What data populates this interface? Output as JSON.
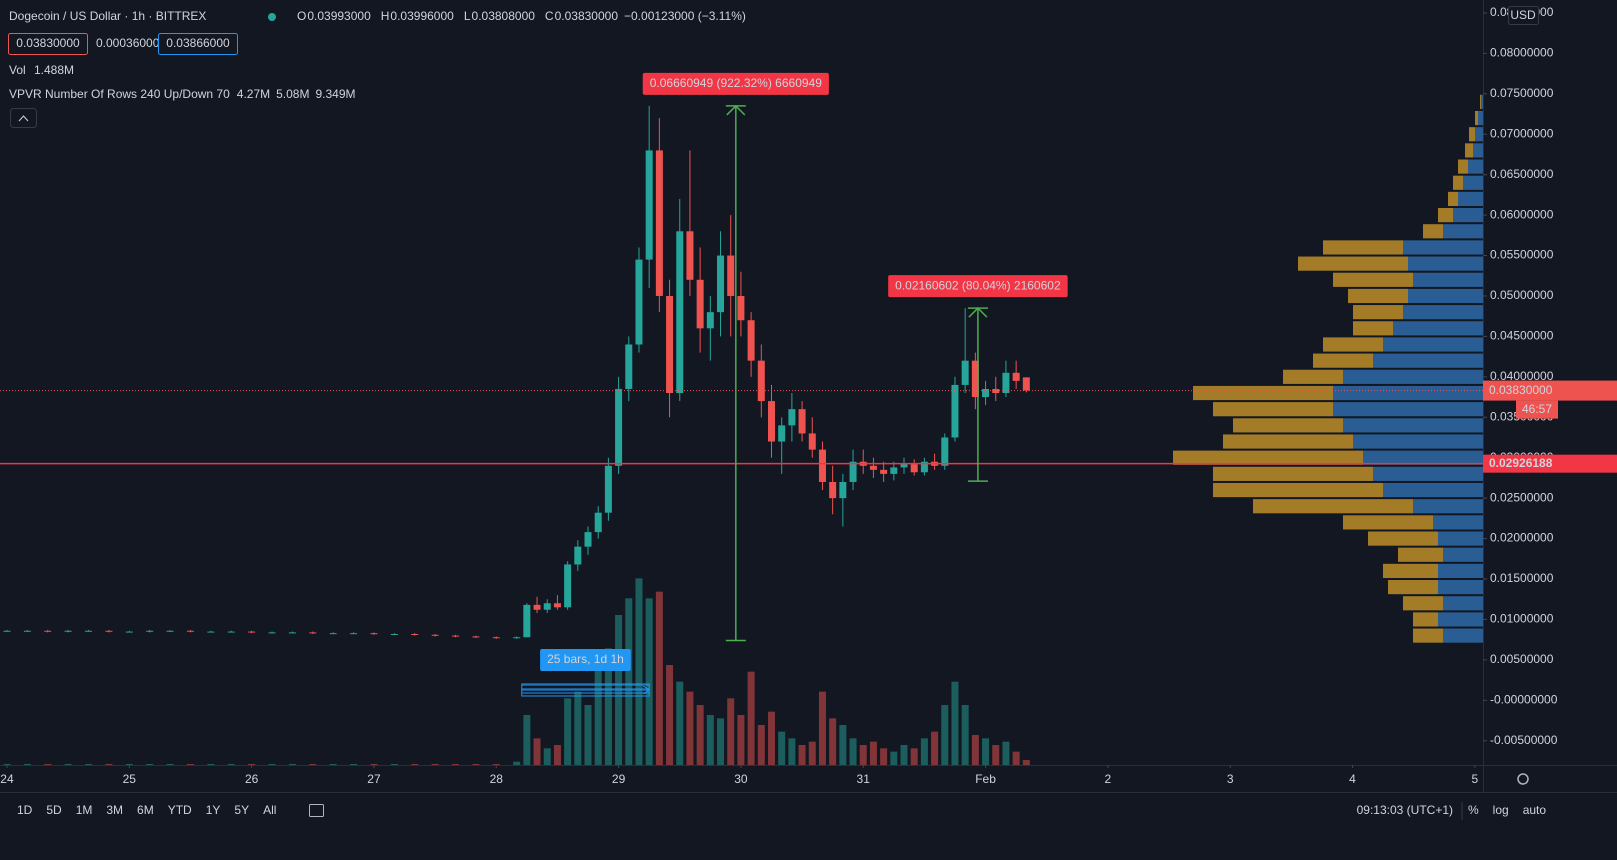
{
  "chart_data": {
    "type": "candlestick",
    "header": {
      "title": "Dogecoin / US Dollar · 1h · BITTREX",
      "ohlc": [
        {
          "k": "O",
          "v": "0.03993000"
        },
        {
          "k": "H",
          "v": "0.03996000"
        },
        {
          "k": "L",
          "v": "0.03808000"
        },
        {
          "k": "C",
          "v": "0.03830000"
        }
      ],
      "change": "−0.00123000 (−3.11%)",
      "bid": "0.03830000",
      "spread": "0.00036000",
      "ask": "0.03866000",
      "vol_label": "Vol",
      "vol_value": "1.488M",
      "vpvr_label": "VPVR Number Of Rows 240 Up/Down 70",
      "vpvr_up": "4.27M",
      "vpvr_down": "5.08M",
      "vpvr_total": "9.349M"
    },
    "currency": "USD",
    "x": [
      0,
      4,
      8,
      12,
      16,
      20,
      24,
      28,
      32,
      36,
      40,
      44,
      48,
      52,
      56,
      60,
      64,
      68,
      72,
      76,
      80,
      84,
      88,
      92,
      96,
      100,
      102,
      104,
      106,
      108,
      110,
      112,
      114,
      116,
      118,
      120,
      122,
      124,
      126,
      128,
      130,
      132,
      134,
      136,
      138,
      140,
      142,
      144,
      146,
      148,
      150,
      152,
      154,
      156,
      158,
      160,
      162,
      164,
      166,
      168,
      170,
      172,
      174,
      176,
      178,
      180,
      182,
      184,
      186,
      188,
      190,
      192,
      194,
      196,
      198,
      200
    ],
    "open": [
      0.0086,
      0.0086,
      0.0086,
      0.0085,
      0.0086,
      0.0086,
      0.0085,
      0.0085,
      0.0086,
      0.0086,
      0.0085,
      0.0085,
      0.0085,
      0.0084,
      0.0084,
      0.0084,
      0.0083,
      0.0083,
      0.0083,
      0.0082,
      0.0082,
      0.0081,
      0.008,
      0.0079,
      0.0078,
      0.0077,
      0.0078,
      0.0118,
      0.0112,
      0.012,
      0.0115,
      0.0168,
      0.019,
      0.0208,
      0.0232,
      0.029,
      0.0385,
      0.044,
      0.0545,
      0.068,
      0.05,
      0.038,
      0.058,
      0.052,
      0.046,
      0.048,
      0.055,
      0.05,
      0.047,
      0.042,
      0.037,
      0.032,
      0.034,
      0.036,
      0.033,
      0.031,
      0.027,
      0.025,
      0.027,
      0.0295,
      0.029,
      0.0285,
      0.028,
      0.0288,
      0.0292,
      0.0282,
      0.0295,
      0.029,
      0.0325,
      0.039,
      0.042,
      0.0375,
      0.0385,
      0.038,
      0.0405,
      0.03993
    ],
    "high": [
      0.0087,
      0.0087,
      0.0087,
      0.0087,
      0.0087,
      0.0087,
      0.0086,
      0.0087,
      0.0087,
      0.0087,
      0.0086,
      0.0086,
      0.0086,
      0.0085,
      0.0085,
      0.0085,
      0.0084,
      0.0084,
      0.0084,
      0.0083,
      0.0083,
      0.0082,
      0.0081,
      0.008,
      0.0079,
      0.0079,
      0.012,
      0.0128,
      0.0125,
      0.013,
      0.0172,
      0.0198,
      0.0215,
      0.024,
      0.03,
      0.04,
      0.045,
      0.056,
      0.0735,
      0.072,
      0.052,
      0.062,
      0.068,
      0.056,
      0.05,
      0.058,
      0.06,
      0.053,
      0.048,
      0.044,
      0.039,
      0.035,
      0.038,
      0.037,
      0.035,
      0.032,
      0.029,
      0.028,
      0.031,
      0.031,
      0.03,
      0.0295,
      0.0295,
      0.03,
      0.0298,
      0.03,
      0.0305,
      0.033,
      0.04,
      0.0485,
      0.043,
      0.0395,
      0.04,
      0.042,
      0.042,
      0.03996
    ],
    "low": [
      0.0085,
      0.0085,
      0.0084,
      0.0084,
      0.0085,
      0.0084,
      0.0084,
      0.0084,
      0.0085,
      0.0084,
      0.0084,
      0.0084,
      0.0083,
      0.0083,
      0.0083,
      0.0082,
      0.0082,
      0.0082,
      0.0081,
      0.0081,
      0.008,
      0.0079,
      0.0078,
      0.0077,
      0.0076,
      0.0076,
      0.0078,
      0.0108,
      0.0108,
      0.0112,
      0.0112,
      0.016,
      0.018,
      0.02,
      0.0222,
      0.028,
      0.037,
      0.043,
      0.051,
      0.048,
      0.035,
      0.037,
      0.05,
      0.043,
      0.042,
      0.045,
      0.045,
      0.045,
      0.04,
      0.035,
      0.03,
      0.028,
      0.032,
      0.032,
      0.03,
      0.026,
      0.023,
      0.0215,
      0.026,
      0.028,
      0.0275,
      0.027,
      0.0272,
      0.028,
      0.0278,
      0.0278,
      0.0285,
      0.0285,
      0.032,
      0.038,
      0.036,
      0.0365,
      0.037,
      0.0375,
      0.0385,
      0.03808
    ],
    "close": [
      0.0086,
      0.0086,
      0.0085,
      0.0086,
      0.0086,
      0.0085,
      0.0085,
      0.0086,
      0.0086,
      0.0085,
      0.0085,
      0.0085,
      0.0084,
      0.0084,
      0.0084,
      0.0083,
      0.0083,
      0.0083,
      0.0082,
      0.0082,
      0.0081,
      0.008,
      0.0079,
      0.0078,
      0.0077,
      0.0078,
      0.0118,
      0.0112,
      0.012,
      0.0115,
      0.0168,
      0.019,
      0.0208,
      0.0232,
      0.029,
      0.0385,
      0.044,
      0.0545,
      0.068,
      0.05,
      0.038,
      0.058,
      0.052,
      0.046,
      0.048,
      0.055,
      0.05,
      0.047,
      0.042,
      0.037,
      0.032,
      0.034,
      0.036,
      0.033,
      0.031,
      0.027,
      0.025,
      0.027,
      0.0295,
      0.029,
      0.0285,
      0.028,
      0.0288,
      0.0292,
      0.0282,
      0.0295,
      0.029,
      0.0325,
      0.039,
      0.042,
      0.0375,
      0.0385,
      0.038,
      0.0405,
      0.0395,
      0.0383
    ],
    "volume": [
      0.3,
      0.3,
      0.3,
      0.3,
      0.3,
      0.3,
      0.3,
      0.3,
      0.3,
      0.3,
      0.3,
      0.3,
      0.3,
      0.3,
      0.3,
      0.3,
      0.3,
      0.3,
      0.3,
      0.3,
      0.3,
      0.3,
      0.3,
      0.3,
      0.3,
      1,
      15,
      8,
      5,
      6,
      20,
      22,
      18,
      30,
      35,
      45,
      50,
      56,
      50,
      52,
      30,
      25,
      22,
      18,
      15,
      14,
      20,
      15,
      28,
      12,
      16,
      10,
      8,
      6,
      7,
      22,
      14,
      12,
      8,
      6,
      7,
      5,
      4,
      6,
      5,
      8,
      10,
      18,
      25,
      18,
      9,
      8,
      6,
      7,
      4,
      1.488
    ],
    "colors": {
      "up": "#26a69a",
      "down": "#ef5350",
      "vp_up": "#2f6fb0",
      "vp_down": "#c9962a",
      "measure": "#4caf50",
      "range": "#2196f3"
    },
    "xlim": [
      -1.37,
      289.6
    ],
    "xticks": [
      {
        "value": 0,
        "label": "24"
      },
      {
        "value": 24,
        "label": "25"
      },
      {
        "value": 48,
        "label": "26"
      },
      {
        "value": 72,
        "label": "27"
      },
      {
        "value": 96,
        "label": "28"
      },
      {
        "value": 120,
        "label": "29"
      },
      {
        "value": 144,
        "label": "30"
      },
      {
        "value": 168,
        "label": "31"
      },
      {
        "value": 192,
        "label": "Feb"
      },
      {
        "value": 216,
        "label": "2"
      },
      {
        "value": 240,
        "label": "3"
      },
      {
        "value": 264,
        "label": "4"
      },
      {
        "value": 288,
        "label": "5"
      }
    ],
    "ylim": [
      -0.008,
      0.0866
    ],
    "yticks": [
      {
        "value": -0.005,
        "label": "-0.00500000"
      },
      {
        "value": 0,
        "label": "-0.00000000"
      },
      {
        "value": 0.005,
        "label": "0.00500000"
      },
      {
        "value": 0.01,
        "label": "0.01000000"
      },
      {
        "value": 0.015,
        "label": "0.01500000"
      },
      {
        "value": 0.02,
        "label": "0.02000000"
      },
      {
        "value": 0.025,
        "label": "0.02500000"
      },
      {
        "value": 0.03,
        "label": "0.03000000"
      },
      {
        "value": 0.035,
        "label": "0.03500000"
      },
      {
        "value": 0.04,
        "label": "0.04000000"
      },
      {
        "value": 0.045,
        "label": "0.04500000"
      },
      {
        "value": 0.05,
        "label": "0.05000000"
      },
      {
        "value": 0.055,
        "label": "0.05500000"
      },
      {
        "value": 0.06,
        "label": "0.06000000"
      },
      {
        "value": 0.065,
        "label": "0.06500000"
      },
      {
        "value": 0.07,
        "label": "0.07000000"
      },
      {
        "value": 0.075,
        "label": "0.07500000"
      },
      {
        "value": 0.08,
        "label": "0.08000000"
      },
      {
        "value": 0.085,
        "label": "0.08500000"
      }
    ],
    "volume_ylim": [
      0,
      60
    ],
    "last_price": {
      "value": 0.0383,
      "label": "0.03830000",
      "countdown": "46:57"
    },
    "hline": 0.02926188,
    "measures": [
      {
        "label": "0.06660949 (922.32%) 6660949",
        "x": 143,
        "from": 0.0074,
        "to": 0.0735
      },
      {
        "label": "0.02160602 (80.04%) 2160602",
        "x": 190.5,
        "from": 0.0271,
        "to": 0.0485
      }
    ],
    "range": {
      "label": "25 bars, 1d 1h",
      "from": 101,
      "to": 126
    },
    "vpvr": {
      "prices": [
        0.008,
        0.01,
        0.012,
        0.014,
        0.016,
        0.018,
        0.02,
        0.022,
        0.024,
        0.026,
        0.028,
        0.03,
        0.032,
        0.034,
        0.036,
        0.038,
        0.04,
        0.042,
        0.044,
        0.046,
        0.048,
        0.05,
        0.052,
        0.054,
        0.056,
        0.058,
        0.06,
        0.062,
        0.064,
        0.066,
        0.068,
        0.07,
        0.072,
        0.074
      ],
      "up": [
        40,
        45,
        40,
        45,
        45,
        40,
        45,
        50,
        70,
        100,
        110,
        120,
        130,
        140,
        150,
        150,
        140,
        110,
        100,
        90,
        80,
        75,
        70,
        75,
        80,
        40,
        30,
        25,
        20,
        15,
        10,
        8,
        5,
        2
      ],
      "down": [
        30,
        25,
        40,
        50,
        55,
        45,
        70,
        90,
        160,
        170,
        160,
        190,
        130,
        110,
        120,
        140,
        60,
        60,
        60,
        40,
        50,
        60,
        80,
        110,
        80,
        20,
        15,
        10,
        10,
        10,
        8,
        6,
        3,
        1
      ]
    },
    "timeframes": [
      "1D",
      "5D",
      "1M",
      "3M",
      "6M",
      "YTD",
      "1Y",
      "5Y",
      "All"
    ],
    "clock": "09:13:03 (UTC+1)",
    "scale_buttons": [
      "%",
      "log",
      "auto"
    ]
  }
}
